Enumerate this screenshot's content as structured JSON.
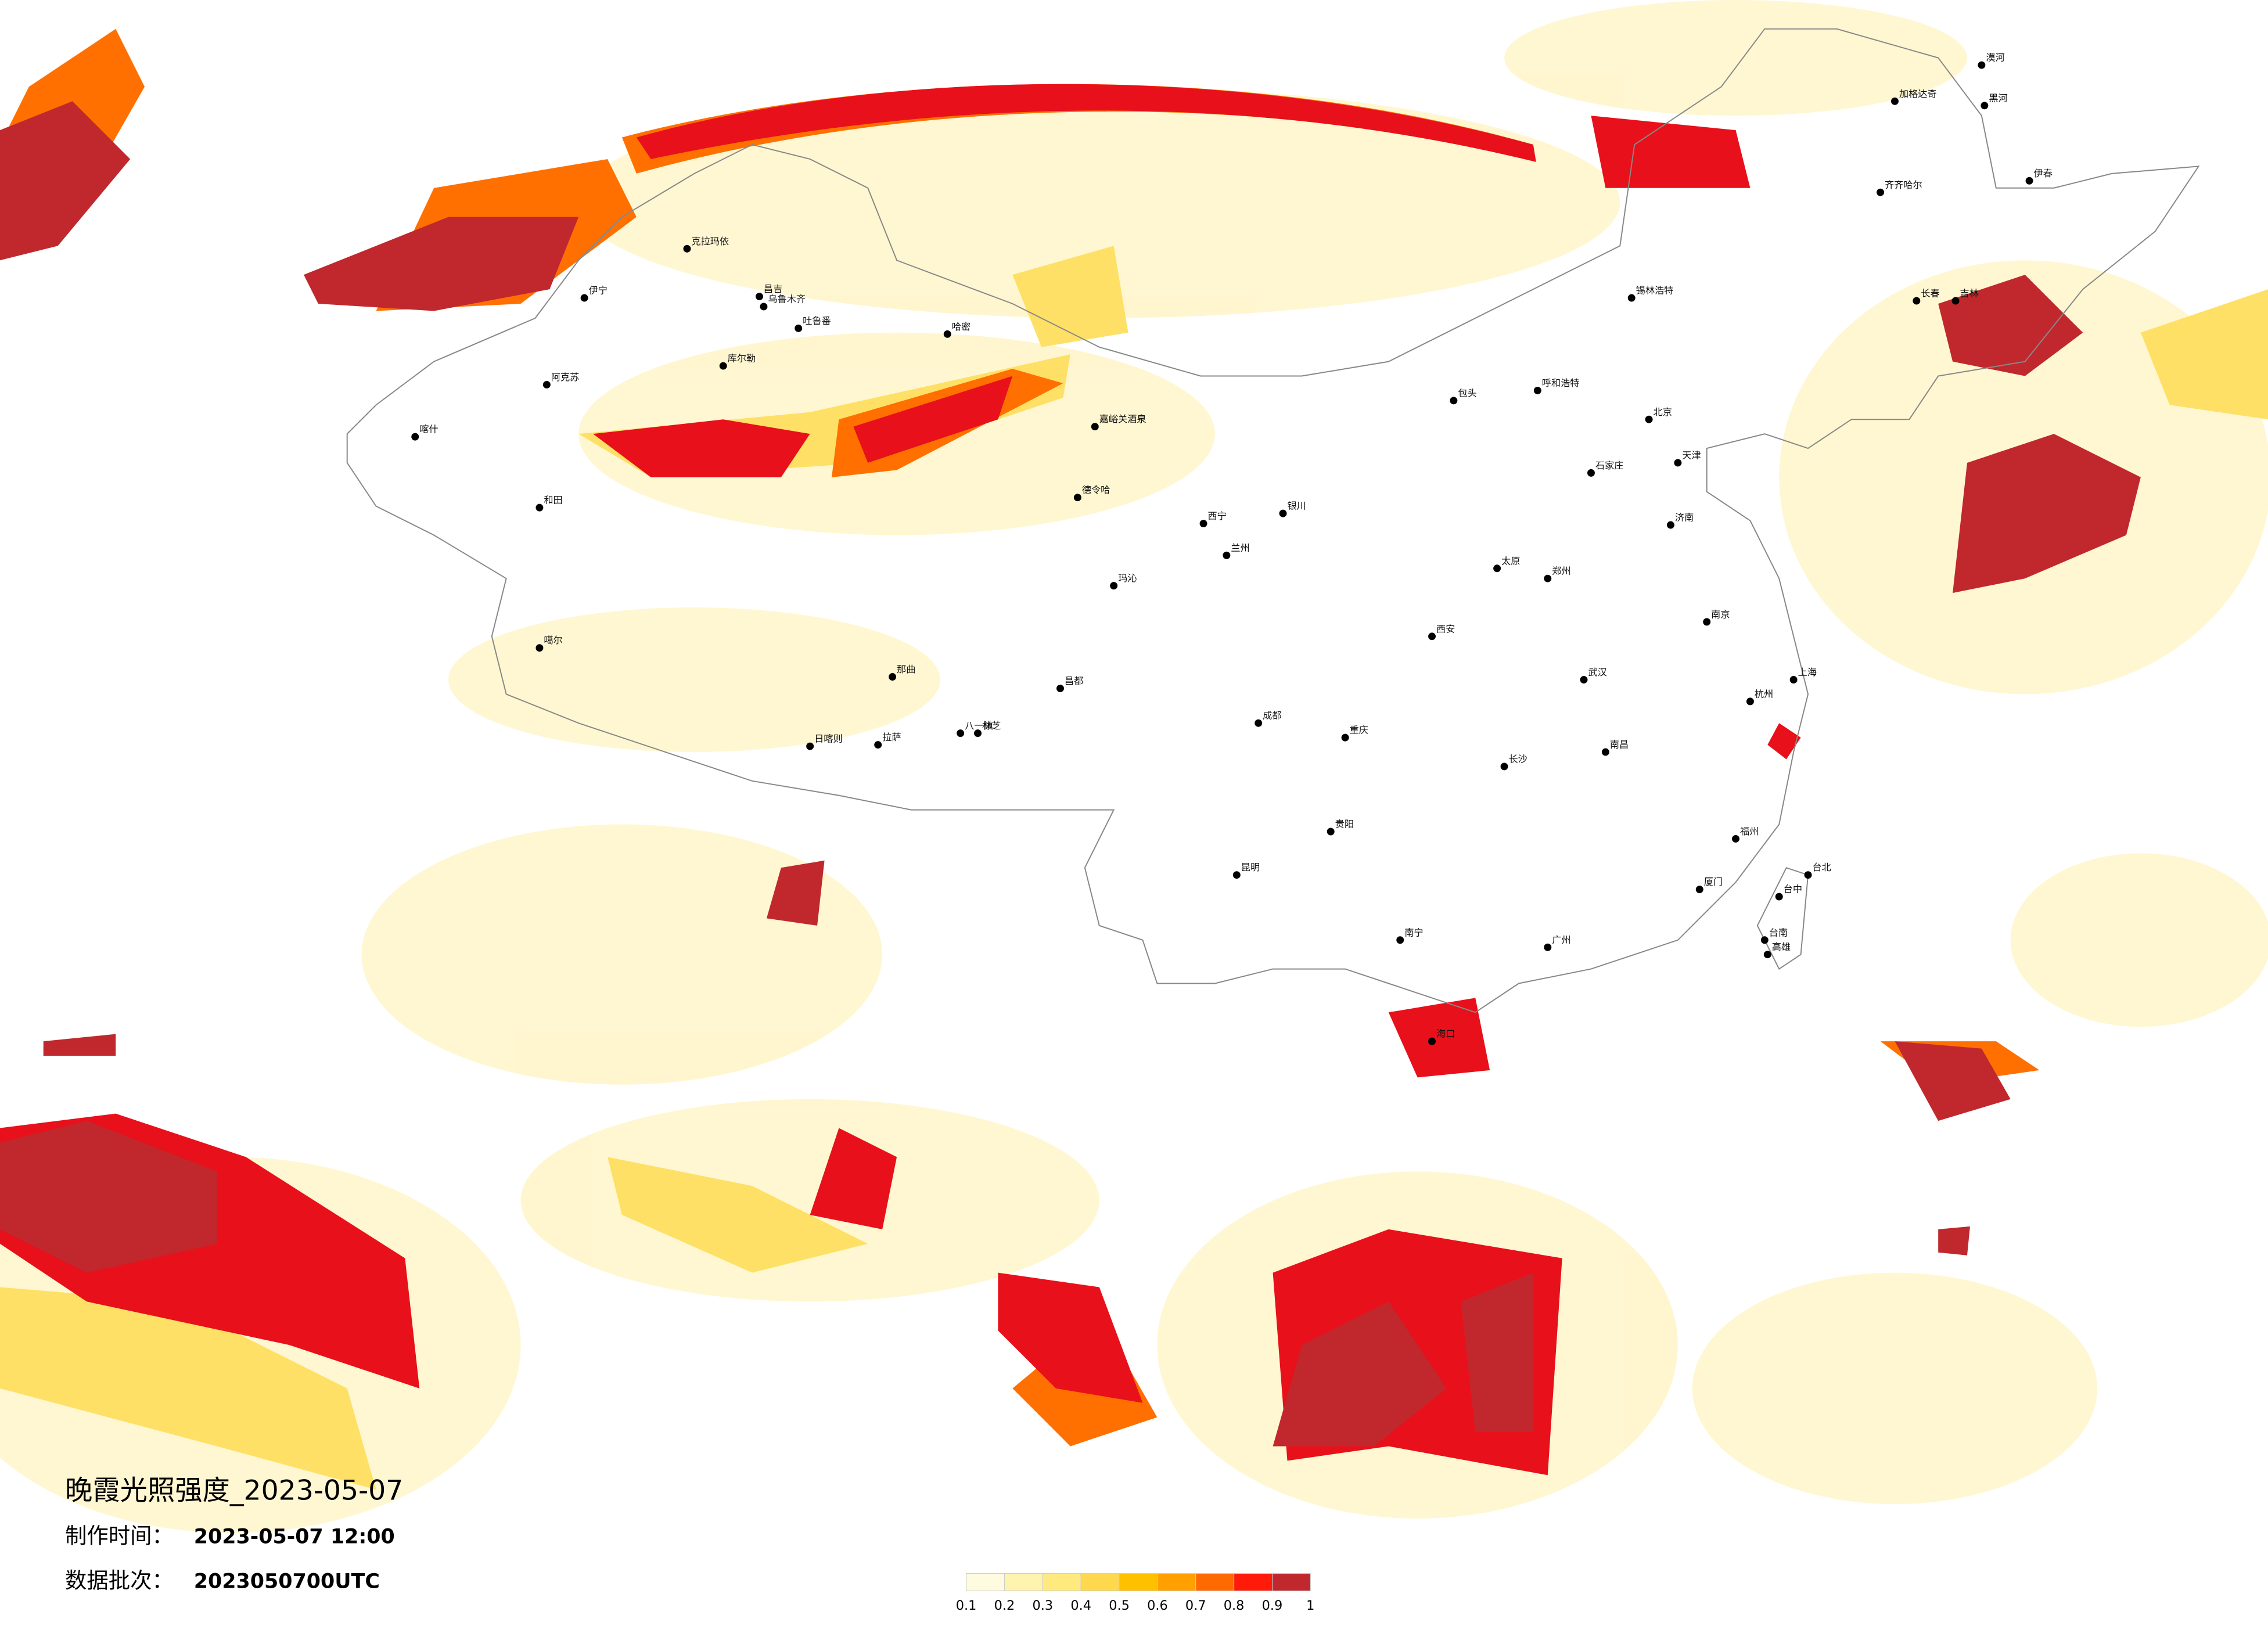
{
  "title": "晚霞光照强度_2023-05-07",
  "made_label": "制作时间：",
  "made_value": "2023-05-07 12:00",
  "batch_label": "数据批次：",
  "batch_value": "2023050700UTC",
  "legend": {
    "colors": [
      "#fffbe0",
      "#fff3b0",
      "#ffea80",
      "#ffd84d",
      "#ffc000",
      "#ffa000",
      "#ff6a00",
      "#ff1a0a",
      "#c0282d"
    ],
    "ticks": [
      0.1,
      0.2,
      0.3,
      0.4,
      0.5,
      0.6,
      0.7,
      0.8,
      0.9,
      1
    ]
  },
  "cities": [
    "克拉玛依",
    "伊宁",
    "昌吉",
    "乌鲁木齐",
    "吐鲁番",
    "哈密",
    "库尔勒",
    "阿克苏",
    "喀什",
    "和田",
    "噶尔",
    "日喀则",
    "拉萨",
    "那曲",
    "八一镇",
    "林芝",
    "昌都",
    "嘉峪关酒泉",
    "德令哈",
    "玛沁",
    "西宁",
    "兰州",
    "银川",
    "包头",
    "呼和浩特",
    "锡林浩特",
    "北京",
    "天津",
    "石家庄",
    "太原",
    "济南",
    "郑州",
    "西安",
    "成都",
    "重庆",
    "贵阳",
    "昆明",
    "南宁",
    "海口",
    "广州",
    "长沙",
    "武汉",
    "南昌",
    "南京",
    "上海",
    "杭州",
    "福州",
    "厦门",
    "台北",
    "台中",
    "台南",
    "高雄",
    "长春",
    "吉林",
    "齐齐哈尔",
    "加格达奇",
    "黑河",
    "伊春",
    "漠河"
  ]
}
